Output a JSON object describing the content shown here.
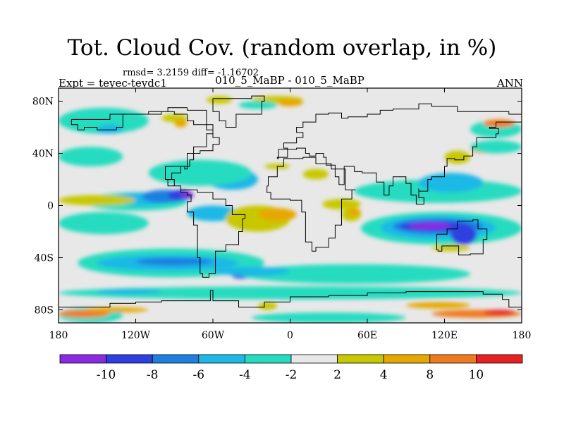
{
  "chart_data": {
    "type": "heatmap",
    "title": "Tot. Cloud Cov. (random overlap, in %)",
    "stats": "rmsd= 3.2159 diff= -1.16702",
    "left_label": "Expt = teyec-teydc1",
    "center_label": "010_5_MaBP - 010_5_MaBP",
    "right_label": "ANN",
    "x_ticks": [
      {
        "value": -180,
        "label": "180"
      },
      {
        "value": -120,
        "label": "120W"
      },
      {
        "value": -60,
        "label": "60W"
      },
      {
        "value": 0,
        "label": "0"
      },
      {
        "value": 60,
        "label": "60E"
      },
      {
        "value": 120,
        "label": "120E"
      },
      {
        "value": 180,
        "label": "180"
      }
    ],
    "y_ticks": [
      {
        "value": 80,
        "label": "80N"
      },
      {
        "value": 40,
        "label": "40N"
      },
      {
        "value": 0,
        "label": "0"
      },
      {
        "value": -40,
        "label": "40S"
      },
      {
        "value": -80,
        "label": "80S"
      }
    ],
    "xlim": [
      -180,
      180
    ],
    "ylim": [
      -90,
      90
    ],
    "levels": [
      -10,
      -8,
      -6,
      -4,
      -2,
      2,
      4,
      8,
      10
    ],
    "level_labels": [
      "-10",
      "-8",
      "-6",
      "-4",
      "-2",
      "2",
      "4",
      "8",
      "10"
    ],
    "colors": [
      "#8a2be2",
      "#2d3fe0",
      "#1e7fe0",
      "#1eb8e6",
      "#26dcc0",
      "#e8e8e8",
      "#c8c800",
      "#e6a800",
      "#f07a1e",
      "#e82020"
    ],
    "background_color": "#e8e8e8",
    "regions": [
      {
        "level_index": 4,
        "lon": [
          -165,
          -20
        ],
        "lat": [
          -55,
          -33
        ]
      },
      {
        "level_index": 3,
        "lon": [
          -150,
          -40
        ],
        "lat": [
          -50,
          -38
        ]
      },
      {
        "level_index": 2,
        "lon": [
          -120,
          -60
        ],
        "lat": [
          -46,
          -40
        ]
      },
      {
        "level_index": 1,
        "lon": [
          -45,
          -30
        ],
        "lat": [
          -56,
          -52
        ]
      },
      {
        "level_index": 4,
        "lon": [
          -40,
          140
        ],
        "lat": [
          -60,
          -45
        ]
      },
      {
        "level_index": 3,
        "lon": [
          -60,
          0
        ],
        "lat": [
          -54,
          -47
        ]
      },
      {
        "level_index": 4,
        "lon": [
          -180,
          180
        ],
        "lat": [
          -72,
          -62
        ]
      },
      {
        "level_index": 3,
        "lon": [
          -150,
          -100
        ],
        "lat": [
          -68,
          -64
        ]
      },
      {
        "level_index": 4,
        "lon": [
          -180,
          -130
        ],
        "lat": [
          -90,
          -78
        ]
      },
      {
        "level_index": 8,
        "lon": [
          -180,
          -140
        ],
        "lat": [
          -86,
          -80
        ]
      },
      {
        "level_index": 7,
        "lon": [
          -160,
          -110
        ],
        "lat": [
          -82,
          -78
        ]
      },
      {
        "level_index": 8,
        "lon": [
          110,
          180
        ],
        "lat": [
          -86,
          -80
        ]
      },
      {
        "level_index": 9,
        "lon": [
          150,
          175
        ],
        "lat": [
          -84,
          -80
        ]
      },
      {
        "level_index": 7,
        "lon": [
          90,
          140
        ],
        "lat": [
          -79,
          -74
        ]
      },
      {
        "level_index": 6,
        "lon": [
          -25,
          -10
        ],
        "lat": [
          -80,
          -74
        ]
      },
      {
        "level_index": 4,
        "lon": [
          -30,
          90
        ],
        "lat": [
          -90,
          -82
        ]
      },
      {
        "level_index": 4,
        "lon": [
          -160,
          -80
        ],
        "lat": [
          -4,
          10
        ]
      },
      {
        "level_index": 3,
        "lon": [
          -140,
          -90
        ],
        "lat": [
          0,
          10
        ]
      },
      {
        "level_index": 2,
        "lon": [
          -115,
          -80
        ],
        "lat": [
          2,
          12
        ]
      },
      {
        "level_index": 1,
        "lon": [
          -95,
          -75
        ],
        "lat": [
          4,
          12
        ]
      },
      {
        "level_index": 0,
        "lon": [
          -85,
          -75
        ],
        "lat": [
          6,
          10
        ]
      },
      {
        "level_index": 3,
        "lon": [
          -80,
          -40
        ],
        "lat": [
          -12,
          0
        ]
      },
      {
        "level_index": 3,
        "lon": [
          -65,
          -25
        ],
        "lat": [
          12,
          28
        ]
      },
      {
        "level_index": 4,
        "lon": [
          -110,
          -30
        ],
        "lat": [
          15,
          35
        ]
      },
      {
        "level_index": 4,
        "lon": [
          -180,
          -110
        ],
        "lat": [
          -22,
          -5
        ]
      },
      {
        "level_index": 7,
        "lon": [
          -180,
          -130
        ],
        "lat": [
          1,
          7
        ]
      },
      {
        "level_index": 6,
        "lon": [
          -180,
          -120
        ],
        "lat": [
          0,
          8
        ]
      },
      {
        "level_index": 6,
        "lon": [
          -50,
          0
        ],
        "lat": [
          -20,
          0
        ]
      },
      {
        "level_index": 7,
        "lon": [
          -25,
          5
        ],
        "lat": [
          -12,
          -2
        ]
      },
      {
        "level_index": 6,
        "lon": [
          10,
          30
        ],
        "lat": [
          20,
          28
        ]
      },
      {
        "level_index": 6,
        "lon": [
          25,
          55
        ],
        "lat": [
          -3,
          5
        ]
      },
      {
        "level_index": 6,
        "lon": [
          40,
          55
        ],
        "lat": [
          -12,
          -2
        ]
      },
      {
        "level_index": 7,
        "lon": [
          45,
          55
        ],
        "lat": [
          -8,
          -2
        ]
      },
      {
        "level_index": 4,
        "lon": [
          55,
          180
        ],
        "lat": [
          -30,
          -5
        ]
      },
      {
        "level_index": 3,
        "lon": [
          70,
          160
        ],
        "lat": [
          -26,
          -8
        ]
      },
      {
        "level_index": 2,
        "lon": [
          80,
          150
        ],
        "lat": [
          -22,
          -10
        ]
      },
      {
        "level_index": 1,
        "lon": [
          85,
          140
        ],
        "lat": [
          -20,
          -12
        ]
      },
      {
        "level_index": 0,
        "lon": [
          92,
          125
        ],
        "lat": [
          -18,
          -13
        ]
      },
      {
        "level_index": 1,
        "lon": [
          125,
          145
        ],
        "lat": [
          -30,
          -15
        ]
      },
      {
        "level_index": 4,
        "lon": [
          50,
          180
        ],
        "lat": [
          2,
          20
        ]
      },
      {
        "level_index": 3,
        "lon": [
          100,
          150
        ],
        "lat": [
          10,
          25
        ]
      },
      {
        "level_index": 6,
        "lon": [
          110,
          140
        ],
        "lat": [
          -35,
          -30
        ]
      },
      {
        "level_index": 4,
        "lon": [
          -180,
          -110
        ],
        "lat": [
          55,
          75
        ]
      },
      {
        "level_index": 3,
        "lon": [
          -150,
          -130
        ],
        "lat": [
          55,
          62
        ]
      },
      {
        "level_index": 4,
        "lon": [
          -180,
          -130
        ],
        "lat": [
          30,
          45
        ]
      },
      {
        "level_index": 4,
        "lon": [
          140,
          180
        ],
        "lat": [
          52,
          65
        ]
      },
      {
        "level_index": 8,
        "lon": [
          150,
          175
        ],
        "lat": [
          60,
          66
        ]
      },
      {
        "level_index": 6,
        "lon": [
          120,
          140
        ],
        "lat": [
          32,
          42
        ]
      },
      {
        "level_index": 7,
        "lon": [
          140,
          160
        ],
        "lat": [
          40,
          48
        ]
      },
      {
        "level_index": 4,
        "lon": [
          140,
          180
        ],
        "lat": [
          40,
          50
        ]
      },
      {
        "level_index": 6,
        "lon": [
          -65,
          -45
        ],
        "lat": [
          78,
          84
        ]
      },
      {
        "level_index": 6,
        "lon": [
          -30,
          10
        ],
        "lat": [
          78,
          84
        ]
      },
      {
        "level_index": 7,
        "lon": [
          -10,
          10
        ],
        "lat": [
          76,
          82
        ]
      },
      {
        "level_index": 4,
        "lon": [
          -40,
          -10
        ],
        "lat": [
          74,
          80
        ]
      },
      {
        "level_index": 6,
        "lon": [
          -100,
          -80
        ],
        "lat": [
          64,
          70
        ]
      },
      {
        "level_index": 7,
        "lon": [
          -90,
          -80
        ],
        "lat": [
          60,
          66
        ]
      },
      {
        "level_index": 6,
        "lon": [
          -20,
          0
        ],
        "lat": [
          28,
          32
        ]
      }
    ],
    "coastline": [
      [
        -170,
        66
      ],
      [
        -140,
        70
      ],
      [
        -125,
        70
      ],
      [
        -110,
        72
      ],
      [
        -95,
        75
      ],
      [
        -80,
        73
      ],
      [
        -65,
        62
      ],
      [
        -60,
        55
      ],
      [
        -65,
        45
      ],
      [
        -75,
        40
      ],
      [
        -80,
        30
      ],
      [
        -85,
        25
      ],
      [
        -92,
        20
      ],
      [
        -95,
        15
      ],
      [
        -85,
        10
      ],
      [
        -80,
        8
      ],
      [
        -77,
        3
      ],
      [
        -80,
        -5
      ],
      [
        -75,
        -15
      ],
      [
        -72,
        -25
      ],
      [
        -72,
        -40
      ],
      [
        -70,
        -52
      ],
      [
        -68,
        -55
      ],
      [
        -63,
        -52
      ],
      [
        -58,
        -45
      ],
      [
        -58,
        -35
      ],
      [
        -50,
        -30
      ],
      [
        -40,
        -20
      ],
      [
        -37,
        -10
      ],
      [
        -35,
        -7
      ],
      [
        -45,
        0
      ],
      [
        -50,
        5
      ],
      [
        -60,
        10
      ],
      [
        -72,
        12
      ],
      [
        -85,
        15
      ],
      [
        -90,
        20
      ],
      [
        -97,
        25
      ],
      [
        -97,
        30
      ],
      [
        -90,
        30
      ],
      [
        -82,
        28
      ],
      [
        -80,
        30
      ],
      [
        -78,
        35
      ],
      [
        -75,
        40
      ],
      [
        -70,
        42
      ],
      [
        -60,
        47
      ],
      [
        -55,
        52
      ],
      [
        -60,
        58
      ],
      [
        -65,
        62
      ],
      [
        -75,
        65
      ],
      [
        -80,
        70
      ],
      [
        -90,
        72
      ],
      [
        -100,
        70
      ],
      [
        -120,
        70
      ],
      [
        -130,
        60
      ],
      [
        -135,
        58
      ],
      [
        -150,
        60
      ],
      [
        -160,
        58
      ],
      [
        -165,
        62
      ],
      [
        -170,
        66
      ]
    ],
    "coastline2": [
      [
        -60,
        82
      ],
      [
        -30,
        84
      ],
      [
        -20,
        80
      ],
      [
        -22,
        70
      ],
      [
        -42,
        60
      ],
      [
        -50,
        65
      ],
      [
        -55,
        72
      ],
      [
        -60,
        82
      ]
    ],
    "coastline3": [
      [
        -18,
        15
      ],
      [
        -17,
        22
      ],
      [
        -10,
        30
      ],
      [
        -5,
        36
      ],
      [
        10,
        37
      ],
      [
        20,
        32
      ],
      [
        32,
        31
      ],
      [
        35,
        28
      ],
      [
        43,
        12
      ],
      [
        51,
        12
      ],
      [
        48,
        5
      ],
      [
        40,
        -5
      ],
      [
        40,
        -15
      ],
      [
        35,
        -25
      ],
      [
        30,
        -32
      ],
      [
        20,
        -35
      ],
      [
        17,
        -28
      ],
      [
        12,
        -18
      ],
      [
        12,
        -5
      ],
      [
        9,
        4
      ],
      [
        0,
        5
      ],
      [
        -8,
        5
      ],
      [
        -15,
        10
      ],
      [
        -18,
        15
      ]
    ],
    "coastline4": [
      [
        -10,
        36
      ],
      [
        -9,
        43
      ],
      [
        -2,
        44
      ],
      [
        -5,
        48
      ],
      [
        5,
        52
      ],
      [
        10,
        56
      ],
      [
        5,
        60
      ],
      [
        10,
        64
      ],
      [
        20,
        70
      ],
      [
        30,
        71
      ],
      [
        40,
        67
      ],
      [
        45,
        68
      ],
      [
        60,
        70
      ],
      [
        70,
        73
      ],
      [
        80,
        74
      ],
      [
        100,
        78
      ],
      [
        110,
        76
      ],
      [
        130,
        72
      ],
      [
        150,
        72
      ],
      [
        170,
        70
      ],
      [
        180,
        68
      ],
      [
        180,
        64
      ],
      [
        160,
        60
      ],
      [
        155,
        59
      ],
      [
        162,
        55
      ],
      [
        160,
        52
      ],
      [
        145,
        45
      ],
      [
        142,
        38
      ],
      [
        135,
        35
      ],
      [
        128,
        36
      ],
      [
        122,
        30
      ],
      [
        120,
        22
      ],
      [
        110,
        20
      ],
      [
        107,
        11
      ],
      [
        100,
        13
      ],
      [
        100,
        6
      ],
      [
        104,
        1
      ],
      [
        98,
        8
      ],
      [
        94,
        17
      ],
      [
        90,
        22
      ],
      [
        80,
        15
      ],
      [
        77,
        8
      ],
      [
        73,
        18
      ],
      [
        67,
        25
      ],
      [
        58,
        25
      ],
      [
        56,
        26
      ],
      [
        50,
        30
      ],
      [
        48,
        30
      ],
      [
        42,
        16
      ],
      [
        38,
        22
      ],
      [
        35,
        28
      ],
      [
        32,
        31
      ],
      [
        28,
        37
      ],
      [
        26,
        40
      ],
      [
        20,
        38
      ],
      [
        15,
        40
      ],
      [
        12,
        44
      ],
      [
        5,
        43
      ],
      [
        -2,
        37
      ],
      [
        -10,
        36
      ]
    ],
    "coastline5": [
      [
        114,
        -22
      ],
      [
        122,
        -18
      ],
      [
        130,
        -12
      ],
      [
        137,
        -12
      ],
      [
        142,
        -11
      ],
      [
        146,
        -18
      ],
      [
        153,
        -26
      ],
      [
        150,
        -37
      ],
      [
        140,
        -38
      ],
      [
        131,
        -31
      ],
      [
        118,
        -35
      ],
      [
        115,
        -34
      ],
      [
        114,
        -22
      ]
    ],
    "coastline6": [
      [
        -180,
        -78
      ],
      [
        -160,
        -78
      ],
      [
        -140,
        -75
      ],
      [
        -120,
        -74
      ],
      [
        -100,
        -73
      ],
      [
        -80,
        -73
      ],
      [
        -62,
        -65
      ],
      [
        -60,
        -73
      ],
      [
        -40,
        -78
      ],
      [
        -20,
        -74
      ],
      [
        0,
        -70
      ],
      [
        30,
        -69
      ],
      [
        60,
        -67
      ],
      [
        90,
        -66
      ],
      [
        120,
        -66
      ],
      [
        150,
        -68
      ],
      [
        165,
        -72
      ],
      [
        170,
        -78
      ],
      [
        180,
        -78
      ]
    ]
  }
}
